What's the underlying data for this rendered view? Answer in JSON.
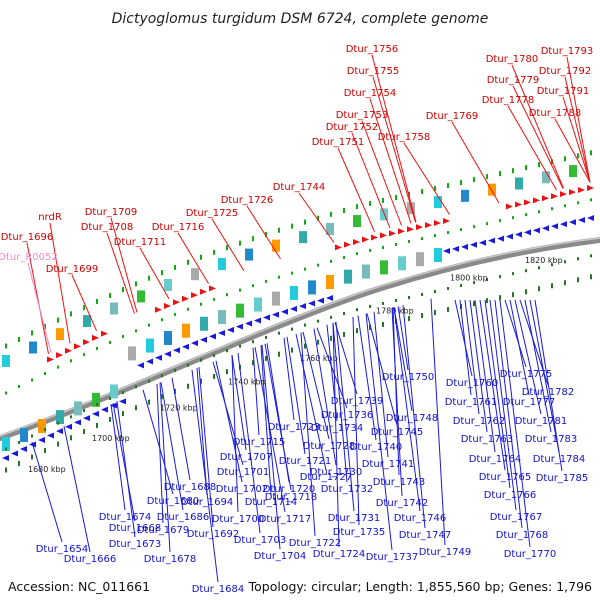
{
  "title": "Dictyoglomus turgidum DSM 6724, complete genome",
  "footer": {
    "accession": "Accession: NC_011661",
    "summary": "Topology: circular; Length: 1,855,560 bp; Genes: 1,796"
  },
  "colors": {
    "plus": "#ee1111",
    "minus": "#1a1add",
    "rna": "#ee88cc",
    "backbone": "#888888",
    "tick": "#11aa11"
  },
  "kbp_labels": [
    "1680 kbp",
    "1700 kbp",
    "1720 kbp",
    "1740 kbp",
    "1760 kbp",
    "1780 kbp",
    "1800 kbp",
    "1820 kbp"
  ],
  "plus_labels": [
    "nrdR",
    "Dtur_1696",
    "Dtur_R0052",
    "Dtur_1699",
    "Dtur_1709",
    "Dtur_1708",
    "Dtur_1711",
    "Dtur_1716",
    "Dtur_1725",
    "Dtur_1726",
    "Dtur_1744",
    "Dtur_1751",
    "Dtur_1752",
    "Dtur_1753",
    "Dtur_1754",
    "Dtur_1755",
    "Dtur_1756",
    "Dtur_1758",
    "Dtur_1769",
    "Dtur_1778",
    "Dtur_1779",
    "Dtur_1780",
    "Dtur_1788",
    "Dtur_1791",
    "Dtur_1792",
    "Dtur_1793"
  ],
  "minus_labels": [
    "Dtur_1654",
    "Dtur_1666",
    "Dtur_1668",
    "Dtur_1673",
    "Dtur_1674",
    "Dtur_1678",
    "Dtur_1679",
    "Dtur_1680",
    "Dtur_1684",
    "Dtur_1686",
    "Dtur_1688",
    "Dtur_1692",
    "Dtur_1694",
    "Dtur_1700",
    "Dtur_1701",
    "Dtur_1702",
    "Dtur_1703",
    "Dtur_1704",
    "Dtur_1707",
    "Dtur_1714",
    "Dtur_1715",
    "Dtur_1717",
    "Dtur_1718",
    "Dtur_1720",
    "Dtur_1721",
    "Dtur_1722",
    "Dtur_1723",
    "Dtur_1724",
    "Dtur_1727",
    "Dtur_1728",
    "Dtur_1730",
    "Dtur_1731",
    "Dtur_1732",
    "Dtur_1734",
    "Dtur_1735",
    "Dtur_1736",
    "Dtur_1737",
    "Dtur_1739",
    "Dtur_1740",
    "Dtur_1741",
    "Dtur_1742",
    "Dtur_1743",
    "Dtur_1745",
    "Dtur_1746",
    "Dtur_1747",
    "Dtur_1748",
    "Dtur_1749",
    "Dtur_1750",
    "Dtur_1760",
    "Dtur_1761",
    "Dtur_1762",
    "Dtur_1763",
    "Dtur_1764",
    "Dtur_1765",
    "Dtur_1766",
    "Dtur_1767",
    "Dtur_1768",
    "Dtur_1770",
    "Dtur_1775",
    "Dtur_1777",
    "Dtur_1781",
    "Dtur_1782",
    "Dtur_1783",
    "Dtur_1784",
    "Dtur_1785"
  ]
}
